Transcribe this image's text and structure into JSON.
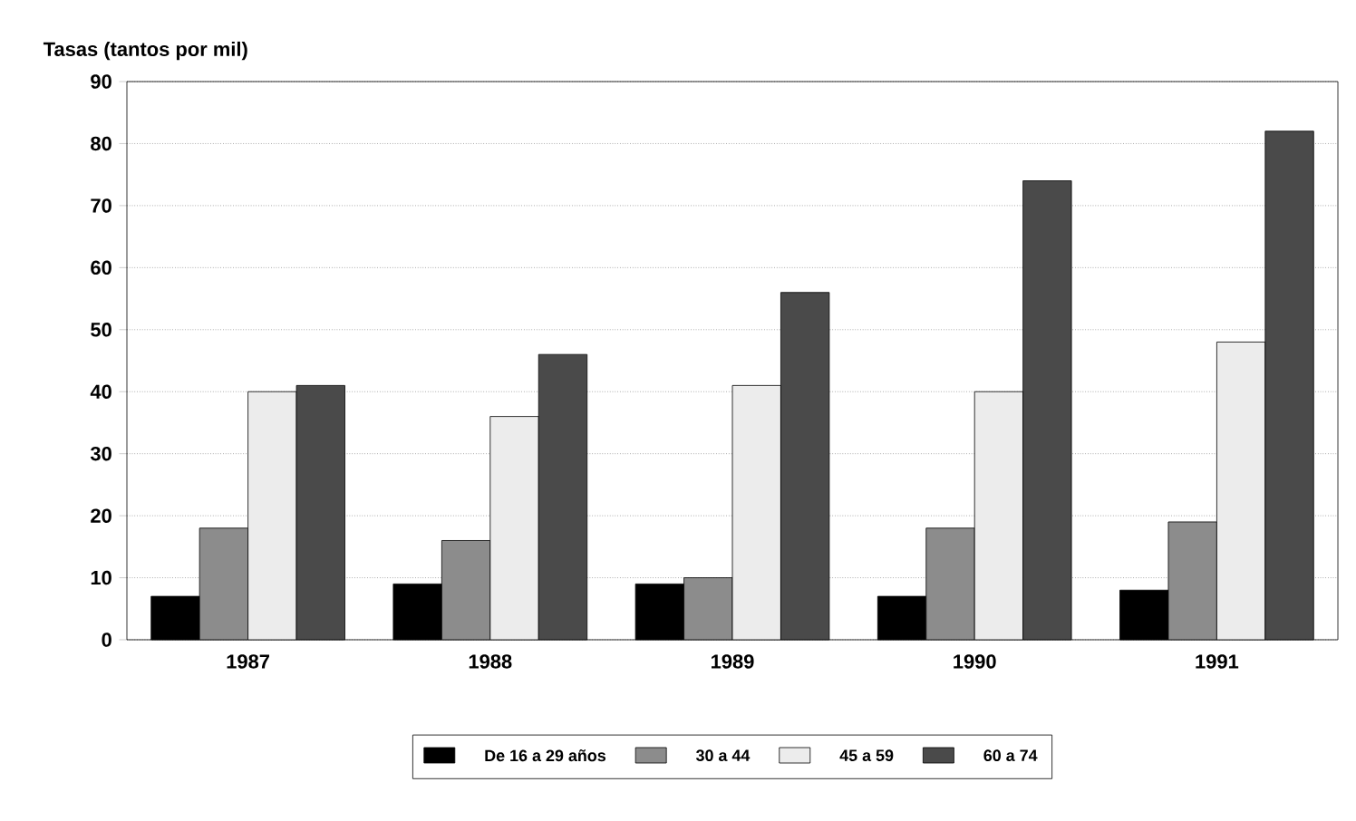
{
  "chart_data": {
    "type": "bar",
    "ylabel": "Tasas (tantos por mil)",
    "categories": [
      "1987",
      "1988",
      "1989",
      "1990",
      "1991"
    ],
    "series": [
      {
        "name": "De 16 a 29 años",
        "color": "#000000",
        "values": [
          7,
          9,
          9,
          7,
          8
        ]
      },
      {
        "name": "30 a 44",
        "color": "#8c8c8c",
        "values": [
          18,
          16,
          10,
          18,
          19
        ]
      },
      {
        "name": "45 a 59",
        "color": "#ececec",
        "values": [
          40,
          36,
          41,
          40,
          48
        ]
      },
      {
        "name": "60 a 74",
        "color": "#4a4a4a",
        "values": [
          41,
          46,
          56,
          74,
          82
        ]
      }
    ],
    "ylim": [
      0,
      90
    ],
    "yticks": [
      0,
      10,
      20,
      30,
      40,
      50,
      60,
      70,
      80,
      90
    ],
    "grid": "y",
    "legend": "bottom"
  }
}
